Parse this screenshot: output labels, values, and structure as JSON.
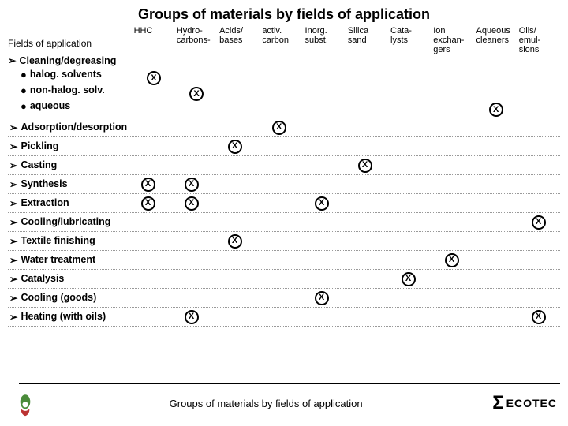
{
  "title": "Groups of materials by fields of application",
  "row_header": "Fields of application",
  "columns": [
    "HHC",
    "Hydro-\ncarbons-",
    "Acids/\nbases",
    "activ.\ncarbon",
    "Inorg.\nsubst.",
    "Silica\nsand",
    "Cata-\nlysts",
    "Ion\nexchan-\ngers",
    "Aqueous\ncleaners",
    "Oils/\nemul-\nsions"
  ],
  "rows": [
    {
      "label": "Cleaning/degreasing",
      "sub": [
        {
          "label": "halog. solvents",
          "x": [
            0
          ]
        },
        {
          "label": "non-halog. solv.",
          "x": [
            1
          ]
        },
        {
          "label": "aqueous",
          "x": [
            8
          ]
        }
      ]
    },
    {
      "label": "Adsorption/desorption",
      "x": [
        3
      ]
    },
    {
      "label": "Pickling",
      "x": [
        2
      ]
    },
    {
      "label": "Casting",
      "x": [
        5
      ]
    },
    {
      "label": "Synthesis",
      "x": [
        0,
        1
      ]
    },
    {
      "label": "Extraction",
      "x": [
        0,
        1,
        4
      ]
    },
    {
      "label": "Cooling/lubricating",
      "x": [
        9
      ]
    },
    {
      "label": "Textile finishing",
      "x": [
        2
      ]
    },
    {
      "label": "Water treatment",
      "x": [
        7
      ]
    },
    {
      "label": "Catalysis",
      "x": [
        6
      ]
    },
    {
      "label": "Cooling (goods)",
      "x": [
        4
      ]
    },
    {
      "label": "Heating (with oils)",
      "x": [
        1,
        9
      ]
    }
  ],
  "footer_caption": "Groups of materials by fields of application",
  "brand": "ECOTEC",
  "mark": "X",
  "arrow": "➢",
  "dot": "●"
}
